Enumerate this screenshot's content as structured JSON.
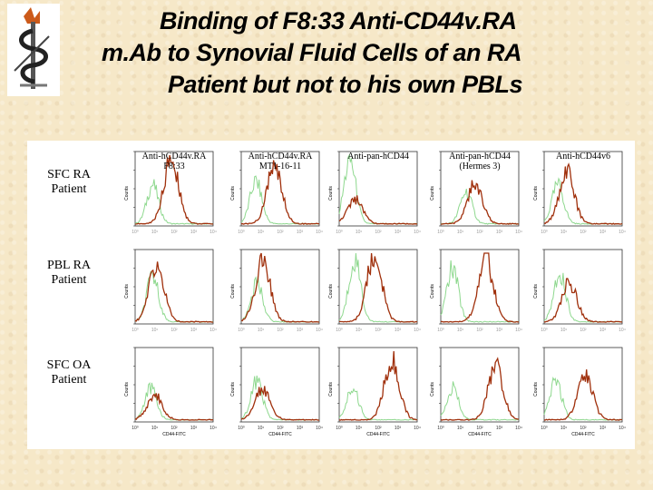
{
  "title": {
    "line1": "Binding of F8:33 Anti-CD44v.RA",
    "line2": "m.Ab  to  Synovial    Fluid Cells of an RA",
    "line3": "Patient but not to his own  PBLs"
  },
  "logo_icon": "caduceus-snake-icon",
  "colors": {
    "stained": "#a0300c",
    "control": "#8ed88e"
  },
  "columns": [
    {
      "line1": "Anti-hCD44v.RA",
      "line2": "F8:33"
    },
    {
      "line1": "Anti-hCD44v.RA",
      "line2": "MT1-16-11"
    },
    {
      "line1": "Anti-pan-hCD44",
      "line2": ""
    },
    {
      "line1": "Anti-pan-hCD44",
      "line2": "(Hermes 3)"
    },
    {
      "line1": "Anti-hCD44v6",
      "line2": ""
    }
  ],
  "rows": [
    {
      "line1": "SFC RA",
      "line2": "Patient"
    },
    {
      "line1": "PBL RA",
      "line2": "Patient"
    },
    {
      "line1": "SFC OA",
      "line2": "Patient"
    }
  ],
  "axis": {
    "ylabel": "Counts",
    "xlabel": "CD44-FITC",
    "xticks": [
      "10⁰",
      "10¹",
      "10²",
      "10³",
      "10⁴"
    ]
  },
  "chart_data": {
    "type": "histogram-grid",
    "x_scale": "log",
    "xlim": [
      0,
      4
    ],
    "note": "approximate peak positions (log10 fluorescence) and relative heights read from the figure",
    "panels": [
      [
        {
          "control": [
            0.9,
            0.55
          ],
          "stained": [
            1.85,
            0.9
          ]
        },
        {
          "control": [
            0.75,
            0.6
          ],
          "stained": [
            1.7,
            0.8
          ]
        },
        {
          "control": [
            0.55,
            0.9
          ],
          "stained": [
            0.8,
            0.35
          ]
        },
        {
          "control": [
            1.3,
            0.45
          ],
          "stained": [
            1.75,
            0.55
          ]
        },
        {
          "control": [
            0.7,
            0.55
          ],
          "stained": [
            1.15,
            0.75
          ]
        }
      ],
      [
        {
          "control": [
            0.9,
            0.65
          ],
          "stained": [
            1.1,
            0.8
          ]
        },
        {
          "control": [
            0.8,
            0.55
          ],
          "stained": [
            1.1,
            0.85
          ]
        },
        {
          "control": [
            0.8,
            0.9
          ],
          "stained": [
            1.8,
            0.95
          ]
        },
        {
          "control": [
            0.6,
            0.75
          ],
          "stained": [
            2.3,
            0.9
          ]
        },
        {
          "control": [
            0.8,
            0.7
          ],
          "stained": [
            1.3,
            0.55
          ]
        }
      ],
      [
        {
          "control": [
            0.8,
            0.45
          ],
          "stained": [
            1.0,
            0.35
          ]
        },
        {
          "control": [
            0.8,
            0.55
          ],
          "stained": [
            1.1,
            0.45
          ]
        },
        {
          "control": [
            0.7,
            0.45
          ],
          "stained": [
            2.7,
            0.85
          ]
        },
        {
          "control": [
            0.6,
            0.45
          ],
          "stained": [
            2.8,
            0.75
          ]
        },
        {
          "control": [
            0.6,
            0.55
          ],
          "stained": [
            2.1,
            0.65
          ]
        }
      ]
    ]
  }
}
